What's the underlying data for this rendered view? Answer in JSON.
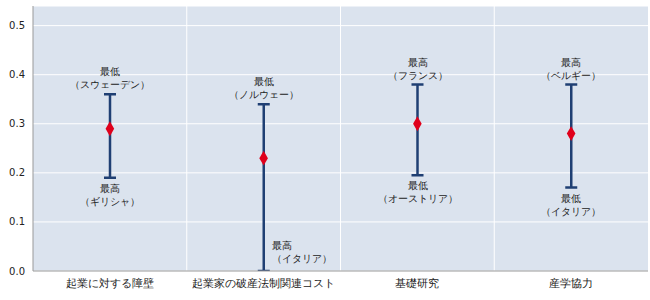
{
  "chart_data": {
    "type": "range",
    "categories": [
      "起業に対する障壁",
      "起業家の破産法制関連コスト",
      "基礎研究",
      "産学協力"
    ],
    "values": [
      0.29,
      0.23,
      0.3,
      0.28
    ],
    "color": "#e0001b",
    "marker": "diamond",
    "error_bars": {
      "low": [
        0.19,
        0.0,
        0.195,
        0.17
      ],
      "high": [
        0.36,
        0.34,
        0.38,
        0.38
      ],
      "color": "#1f3f73",
      "high_labels": [
        [
          "最低",
          "（スウェーデン）"
        ],
        [
          "最低",
          "（ノルウェー）"
        ],
        [
          "最高",
          "（フランス）"
        ],
        [
          "最高",
          "（ベルギー）"
        ]
      ],
      "low_labels": [
        [
          "最高",
          "（ギリシャ）"
        ],
        [
          "最高",
          "（イタリア）"
        ],
        [
          "最低",
          "（オーストリア）"
        ],
        [
          "最低",
          "（イタリア）"
        ]
      ]
    },
    "ylim": [
      0,
      0.54
    ],
    "yticks": [
      {
        "value": 0,
        "label": "0.0"
      },
      0.1,
      0.2,
      0.3,
      0.4,
      0.5
    ],
    "grid": true
  }
}
